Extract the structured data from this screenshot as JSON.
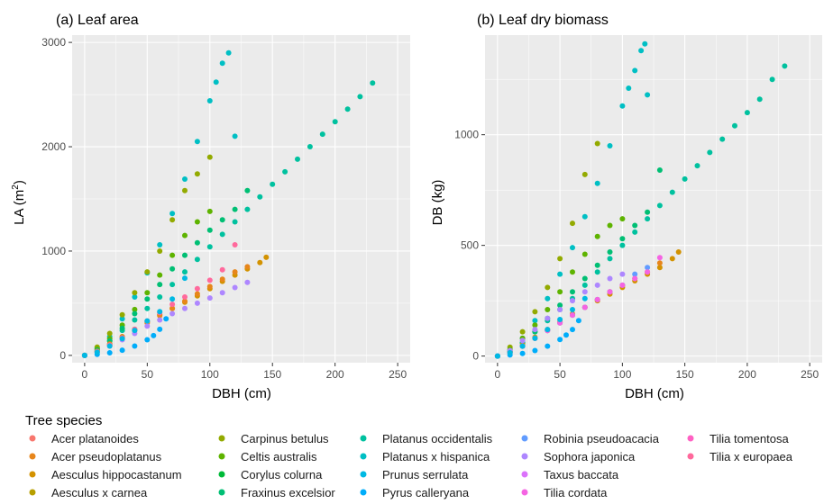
{
  "chart_data": [
    {
      "type": "scatter",
      "title": "(a) Leaf area",
      "xlabel": "DBH (cm)",
      "ylabel": "LA (m²)",
      "xlim": [
        -10,
        260
      ],
      "ylim": [
        -70,
        3070
      ],
      "xticks": [
        0,
        50,
        100,
        150,
        200,
        250
      ],
      "yticks": [
        0,
        1000,
        2000,
        3000
      ],
      "grid": true,
      "series": [
        {
          "name": "Platanus occidentalis",
          "x": [
            0,
            10,
            20,
            30,
            40,
            50,
            60,
            70,
            80,
            90,
            100,
            110,
            120,
            130,
            140,
            150,
            160,
            170,
            180,
            190,
            200,
            210,
            220,
            230
          ],
          "y": [
            0,
            60,
            140,
            240,
            340,
            450,
            560,
            680,
            800,
            920,
            1040,
            1160,
            1280,
            1400,
            1520,
            1640,
            1760,
            1880,
            2000,
            2120,
            2240,
            2360,
            2480,
            2610
          ]
        },
        {
          "name": "Platanus x hispanica",
          "x": [
            0,
            10,
            20,
            30,
            40,
            50,
            60,
            70,
            80,
            90,
            100,
            105,
            110,
            115,
            120
          ],
          "y": [
            0,
            70,
            180,
            350,
            560,
            790,
            1060,
            1360,
            1690,
            2050,
            2440,
            2620,
            2800,
            2900,
            2100
          ]
        },
        {
          "name": "Carpinus betulus",
          "x": [
            0,
            10,
            20,
            30,
            40,
            50,
            60,
            70,
            80,
            90,
            100
          ],
          "y": [
            0,
            80,
            210,
            390,
            600,
            800,
            1000,
            1300,
            1580,
            1740,
            1900
          ]
        },
        {
          "name": "Celtis australis",
          "x": [
            0,
            10,
            20,
            30,
            40,
            50,
            60,
            70,
            80,
            90,
            100
          ],
          "y": [
            0,
            60,
            160,
            290,
            440,
            600,
            770,
            960,
            1150,
            1280,
            1380
          ]
        },
        {
          "name": "Fraxinus excelsior",
          "x": [
            0,
            10,
            20,
            30,
            40,
            50,
            60,
            70,
            80,
            90,
            100,
            110,
            120,
            130
          ],
          "y": [
            0,
            50,
            140,
            260,
            400,
            540,
            680,
            830,
            960,
            1080,
            1200,
            1300,
            1400,
            1580
          ]
        },
        {
          "name": "Aesculus hippocastanum",
          "x": [
            0,
            10,
            20,
            30,
            40,
            50,
            60,
            70,
            80,
            90,
            100,
            110,
            120,
            130,
            140,
            145
          ],
          "y": [
            0,
            40,
            110,
            180,
            250,
            320,
            390,
            450,
            510,
            570,
            640,
            710,
            770,
            830,
            890,
            940
          ]
        },
        {
          "name": "Acer pseudoplatanus",
          "x": [
            0,
            10,
            20,
            30,
            40,
            50,
            60,
            70,
            80,
            90,
            100,
            110,
            120,
            130
          ],
          "y": [
            0,
            35,
            100,
            170,
            240,
            310,
            380,
            450,
            520,
            590,
            660,
            730,
            800,
            850
          ]
        },
        {
          "name": "Tilia x europaea",
          "x": [
            0,
            10,
            20,
            30,
            40,
            50,
            60,
            70,
            80,
            90,
            100,
            110,
            120
          ],
          "y": [
            0,
            35,
            100,
            170,
            250,
            330,
            410,
            490,
            560,
            640,
            720,
            820,
            1060
          ]
        },
        {
          "name": "Sophora japonica",
          "x": [
            0,
            10,
            20,
            30,
            40,
            50,
            60,
            70,
            80,
            90,
            100,
            110,
            120,
            130
          ],
          "y": [
            0,
            30,
            90,
            150,
            210,
            280,
            340,
            400,
            450,
            500,
            550,
            600,
            650,
            700
          ]
        },
        {
          "name": "Pyrus calleryana",
          "x": [
            0,
            10,
            20,
            30,
            40,
            50,
            55,
            60,
            65
          ],
          "y": [
            0,
            10,
            25,
            50,
            90,
            150,
            190,
            250,
            350
          ]
        },
        {
          "name": "Prunus serrulata",
          "x": [
            0,
            10,
            20,
            30,
            40,
            50,
            60,
            70,
            80
          ],
          "y": [
            0,
            30,
            90,
            160,
            240,
            330,
            420,
            540,
            740
          ]
        }
      ]
    },
    {
      "type": "scatter",
      "title": "(b) Leaf dry biomass",
      "xlabel": "DBH (cm)",
      "ylabel": "DB (kg)",
      "xlim": [
        -10,
        260
      ],
      "ylim": [
        -30,
        1450
      ],
      "xticks": [
        0,
        50,
        100,
        150,
        200,
        250
      ],
      "yticks": [
        0,
        500,
        1000
      ],
      "grid": true,
      "series": [
        {
          "name": "Platanus occidentalis",
          "x": [
            0,
            10,
            20,
            30,
            40,
            50,
            60,
            70,
            80,
            90,
            100,
            110,
            120,
            130,
            140,
            150,
            160,
            170,
            180,
            190,
            200,
            210,
            220,
            230
          ],
          "y": [
            0,
            20,
            60,
            110,
            160,
            210,
            260,
            320,
            380,
            440,
            500,
            560,
            620,
            680,
            740,
            800,
            860,
            920,
            980,
            1040,
            1100,
            1160,
            1250,
            1310
          ]
        },
        {
          "name": "Platanus x hispanica",
          "x": [
            0,
            10,
            20,
            30,
            40,
            50,
            60,
            70,
            80,
            90,
            100,
            105,
            110,
            115,
            118,
            120
          ],
          "y": [
            0,
            25,
            80,
            160,
            260,
            370,
            490,
            630,
            780,
            950,
            1130,
            1210,
            1290,
            1380,
            1410,
            1180
          ]
        },
        {
          "name": "Carpinus betulus",
          "x": [
            0,
            10,
            20,
            30,
            40,
            50,
            60,
            70,
            80
          ],
          "y": [
            0,
            40,
            110,
            200,
            310,
            440,
            600,
            820,
            960
          ]
        },
        {
          "name": "Celtis australis",
          "x": [
            0,
            10,
            20,
            30,
            40,
            50,
            60,
            70,
            80,
            90,
            100
          ],
          "y": [
            0,
            30,
            80,
            140,
            210,
            290,
            380,
            460,
            540,
            590,
            620
          ]
        },
        {
          "name": "Fraxinus excelsior",
          "x": [
            0,
            10,
            20,
            30,
            40,
            50,
            60,
            70,
            80,
            90,
            100,
            110,
            120,
            130
          ],
          "y": [
            0,
            20,
            60,
            110,
            170,
            230,
            290,
            350,
            410,
            470,
            530,
            590,
            650,
            840
          ]
        },
        {
          "name": "Aesculus hippocastanum",
          "x": [
            0,
            10,
            20,
            30,
            40,
            50,
            60,
            70,
            80,
            90,
            100,
            110,
            120,
            130,
            140,
            145
          ],
          "y": [
            0,
            20,
            50,
            85,
            120,
            155,
            190,
            220,
            250,
            280,
            310,
            340,
            370,
            400,
            440,
            470
          ]
        },
        {
          "name": "Acer pseudoplatanus",
          "x": [
            0,
            10,
            20,
            30,
            40,
            50,
            60,
            70,
            80,
            90,
            100,
            110,
            120,
            130
          ],
          "y": [
            0,
            15,
            45,
            80,
            115,
            150,
            185,
            220,
            255,
            290,
            320,
            350,
            380,
            420
          ]
        },
        {
          "name": "Sophora japonica",
          "x": [
            0,
            10,
            20,
            30,
            40,
            50,
            60,
            70,
            80,
            90,
            100
          ],
          "y": [
            0,
            25,
            70,
            120,
            170,
            210,
            250,
            290,
            320,
            350,
            370
          ]
        },
        {
          "name": "Robinia pseudoacacia",
          "x": [
            0,
            10,
            20,
            30,
            40,
            50,
            60,
            70,
            80,
            90,
            100,
            110,
            120
          ],
          "y": [
            0,
            15,
            45,
            80,
            115,
            150,
            185,
            220,
            255,
            290,
            320,
            370,
            400
          ]
        },
        {
          "name": "Tilia cordata",
          "x": [
            0,
            10,
            20,
            30,
            40,
            50,
            60,
            70,
            80,
            90,
            100,
            110,
            120,
            130
          ],
          "y": [
            0,
            15,
            45,
            80,
            115,
            150,
            185,
            220,
            255,
            290,
            320,
            350,
            380,
            445
          ]
        },
        {
          "name": "Pyrus calleryana",
          "x": [
            0,
            10,
            20,
            30,
            40,
            50,
            55,
            60,
            65
          ],
          "y": [
            0,
            5,
            12,
            25,
            45,
            75,
            95,
            120,
            160
          ]
        },
        {
          "name": "Prunus serrulata",
          "x": [
            0,
            10,
            20,
            30,
            40,
            50,
            60,
            70
          ],
          "y": [
            0,
            15,
            45,
            80,
            120,
            165,
            210,
            260
          ]
        }
      ]
    }
  ],
  "legend": {
    "title": "Tree species",
    "position": "bottom",
    "items": [
      {
        "label": "Acer platanoides",
        "color": "#F8766D"
      },
      {
        "label": "Acer pseudoplatanus",
        "color": "#E7861B"
      },
      {
        "label": "Aesculus hippocastanum",
        "color": "#D39200"
      },
      {
        "label": "Aesculus x carnea",
        "color": "#B79F00"
      },
      {
        "label": "Carpinus betulus",
        "color": "#93AA00"
      },
      {
        "label": "Celtis australis",
        "color": "#5EB300"
      },
      {
        "label": "Corylus colurna",
        "color": "#00BA38"
      },
      {
        "label": "Fraxinus excelsior",
        "color": "#00BF74"
      },
      {
        "label": "Platanus occidentalis",
        "color": "#00C19F"
      },
      {
        "label": "Platanus x hispanica",
        "color": "#00BFC4"
      },
      {
        "label": "Prunus serrulata",
        "color": "#00B9E3"
      },
      {
        "label": "Pyrus calleryana",
        "color": "#00ADFA"
      },
      {
        "label": "Robinia pseudoacacia",
        "color": "#619CFF"
      },
      {
        "label": "Sophora japonica",
        "color": "#AE87FF"
      },
      {
        "label": "Taxus baccata",
        "color": "#DB72FB"
      },
      {
        "label": "Tilia cordata",
        "color": "#F564E3"
      },
      {
        "label": "Tilia tomentosa",
        "color": "#FF61C3"
      },
      {
        "label": "Tilia x europaea",
        "color": "#FF699C"
      }
    ]
  },
  "colors": {
    "panel_background": "#EBEBEB",
    "grid_major": "#FFFFFF",
    "tick_text": "#4D4D4D"
  }
}
